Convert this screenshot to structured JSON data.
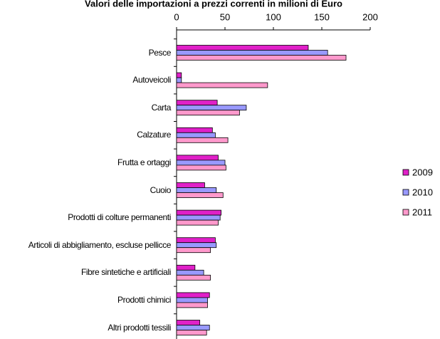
{
  "chart_data": {
    "type": "hbar",
    "title": "Valori delle importazioni a prezzi correnti in milioni di Euro",
    "categories": [
      "Pesce",
      "Autoveicoli",
      "Carta",
      "Calzature",
      "Frutta e ortaggi",
      "Cuoio",
      "Prodotti di colture permanenti",
      "Articoli di abbigliamento, escluse pellicce",
      "Fibre sintetiche e artificiali",
      "Prodotti chimici",
      "Altri prodotti tessili"
    ],
    "series": [
      {
        "name": "2009",
        "color": "#e020c8",
        "values": [
          136,
          5,
          42,
          37,
          43,
          29,
          46,
          40,
          19,
          34,
          24
        ]
      },
      {
        "name": "2010",
        "color": "#9999ff",
        "values": [
          156,
          5,
          72,
          40,
          50,
          41,
          45,
          41,
          28,
          32,
          34
        ]
      },
      {
        "name": "2011",
        "color": "#ff99cc",
        "values": [
          175,
          94,
          65,
          53,
          51,
          48,
          43,
          35,
          35,
          32,
          31
        ]
      }
    ],
    "xlim": [
      0,
      200
    ],
    "xticks": [
      0,
      50,
      100,
      150,
      200
    ]
  }
}
